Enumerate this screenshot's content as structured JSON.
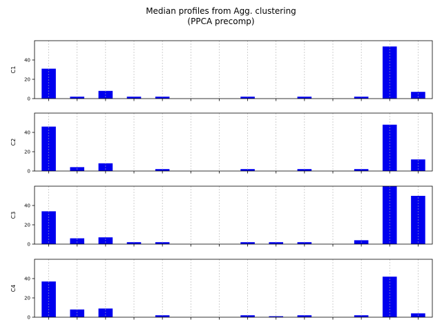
{
  "figure": {
    "title_line1": "Median profiles from Agg. clustering",
    "title_line2": "(PPCA precomp)"
  },
  "colors": {
    "bar": "#0000ee",
    "grid": "#b0b0b0",
    "axis": "#000000"
  },
  "chart_data": {
    "type": "bar",
    "title": "Median profiles from Agg. clustering (PPCA precomp)",
    "n_categories": 14,
    "ylim": [
      0,
      60
    ],
    "yticks": [
      0,
      20,
      40
    ],
    "grid": "vertical dashed",
    "xtick_labels": false,
    "series": [
      {
        "name": "C1",
        "values": [
          31,
          2,
          8,
          2,
          2,
          0,
          0,
          2,
          0,
          2,
          0,
          2,
          54,
          7
        ]
      },
      {
        "name": "C2",
        "values": [
          46,
          4,
          8,
          0,
          2,
          0,
          0,
          2,
          0,
          2,
          0,
          2,
          48,
          12
        ]
      },
      {
        "name": "C3",
        "values": [
          34,
          6,
          7,
          2,
          2,
          0,
          0,
          2,
          2,
          2,
          0,
          4,
          60,
          50
        ]
      },
      {
        "name": "C4",
        "values": [
          37,
          8,
          9,
          0,
          2,
          0,
          0,
          2,
          1,
          2,
          0,
          2,
          42,
          4
        ]
      }
    ]
  }
}
